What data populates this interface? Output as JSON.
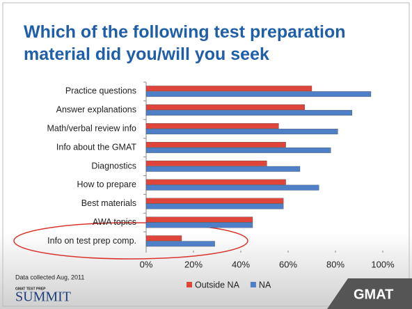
{
  "chart_data": {
    "type": "hbar",
    "title": "Which of the following test preparation material did you/will you seek",
    "categories": [
      "Practice questions",
      "Answer explanations",
      "Math/verbal review info",
      "Info about the GMAT",
      "Diagnostics",
      "How to prepare",
      "Best materials",
      "AWA topics",
      "Info on test prep comp."
    ],
    "series": [
      {
        "name": "Outside NA",
        "color": "#e0453c",
        "values": [
          70,
          67,
          56,
          59,
          51,
          59,
          58,
          45,
          15
        ]
      },
      {
        "name": "NA",
        "color": "#4f7fc6",
        "values": [
          95,
          87,
          81,
          78,
          65,
          73,
          58,
          45,
          29
        ]
      }
    ],
    "xlim": [
      0,
      100
    ],
    "xticks": [
      {
        "value": 0,
        "label": "0%"
      },
      {
        "value": 20,
        "label": "20%"
      },
      {
        "value": 40,
        "label": "40%"
      },
      {
        "value": 60,
        "label": "60%"
      },
      {
        "value": 80,
        "label": "80%"
      },
      {
        "value": 100,
        "label": "100%"
      }
    ],
    "grid": false,
    "legend": "bottom",
    "footnote": "Data collected Aug, 2011"
  },
  "branding": {
    "small": "GMAT TEST PREP",
    "name": "SUMMIT",
    "logo": "GMAT"
  }
}
